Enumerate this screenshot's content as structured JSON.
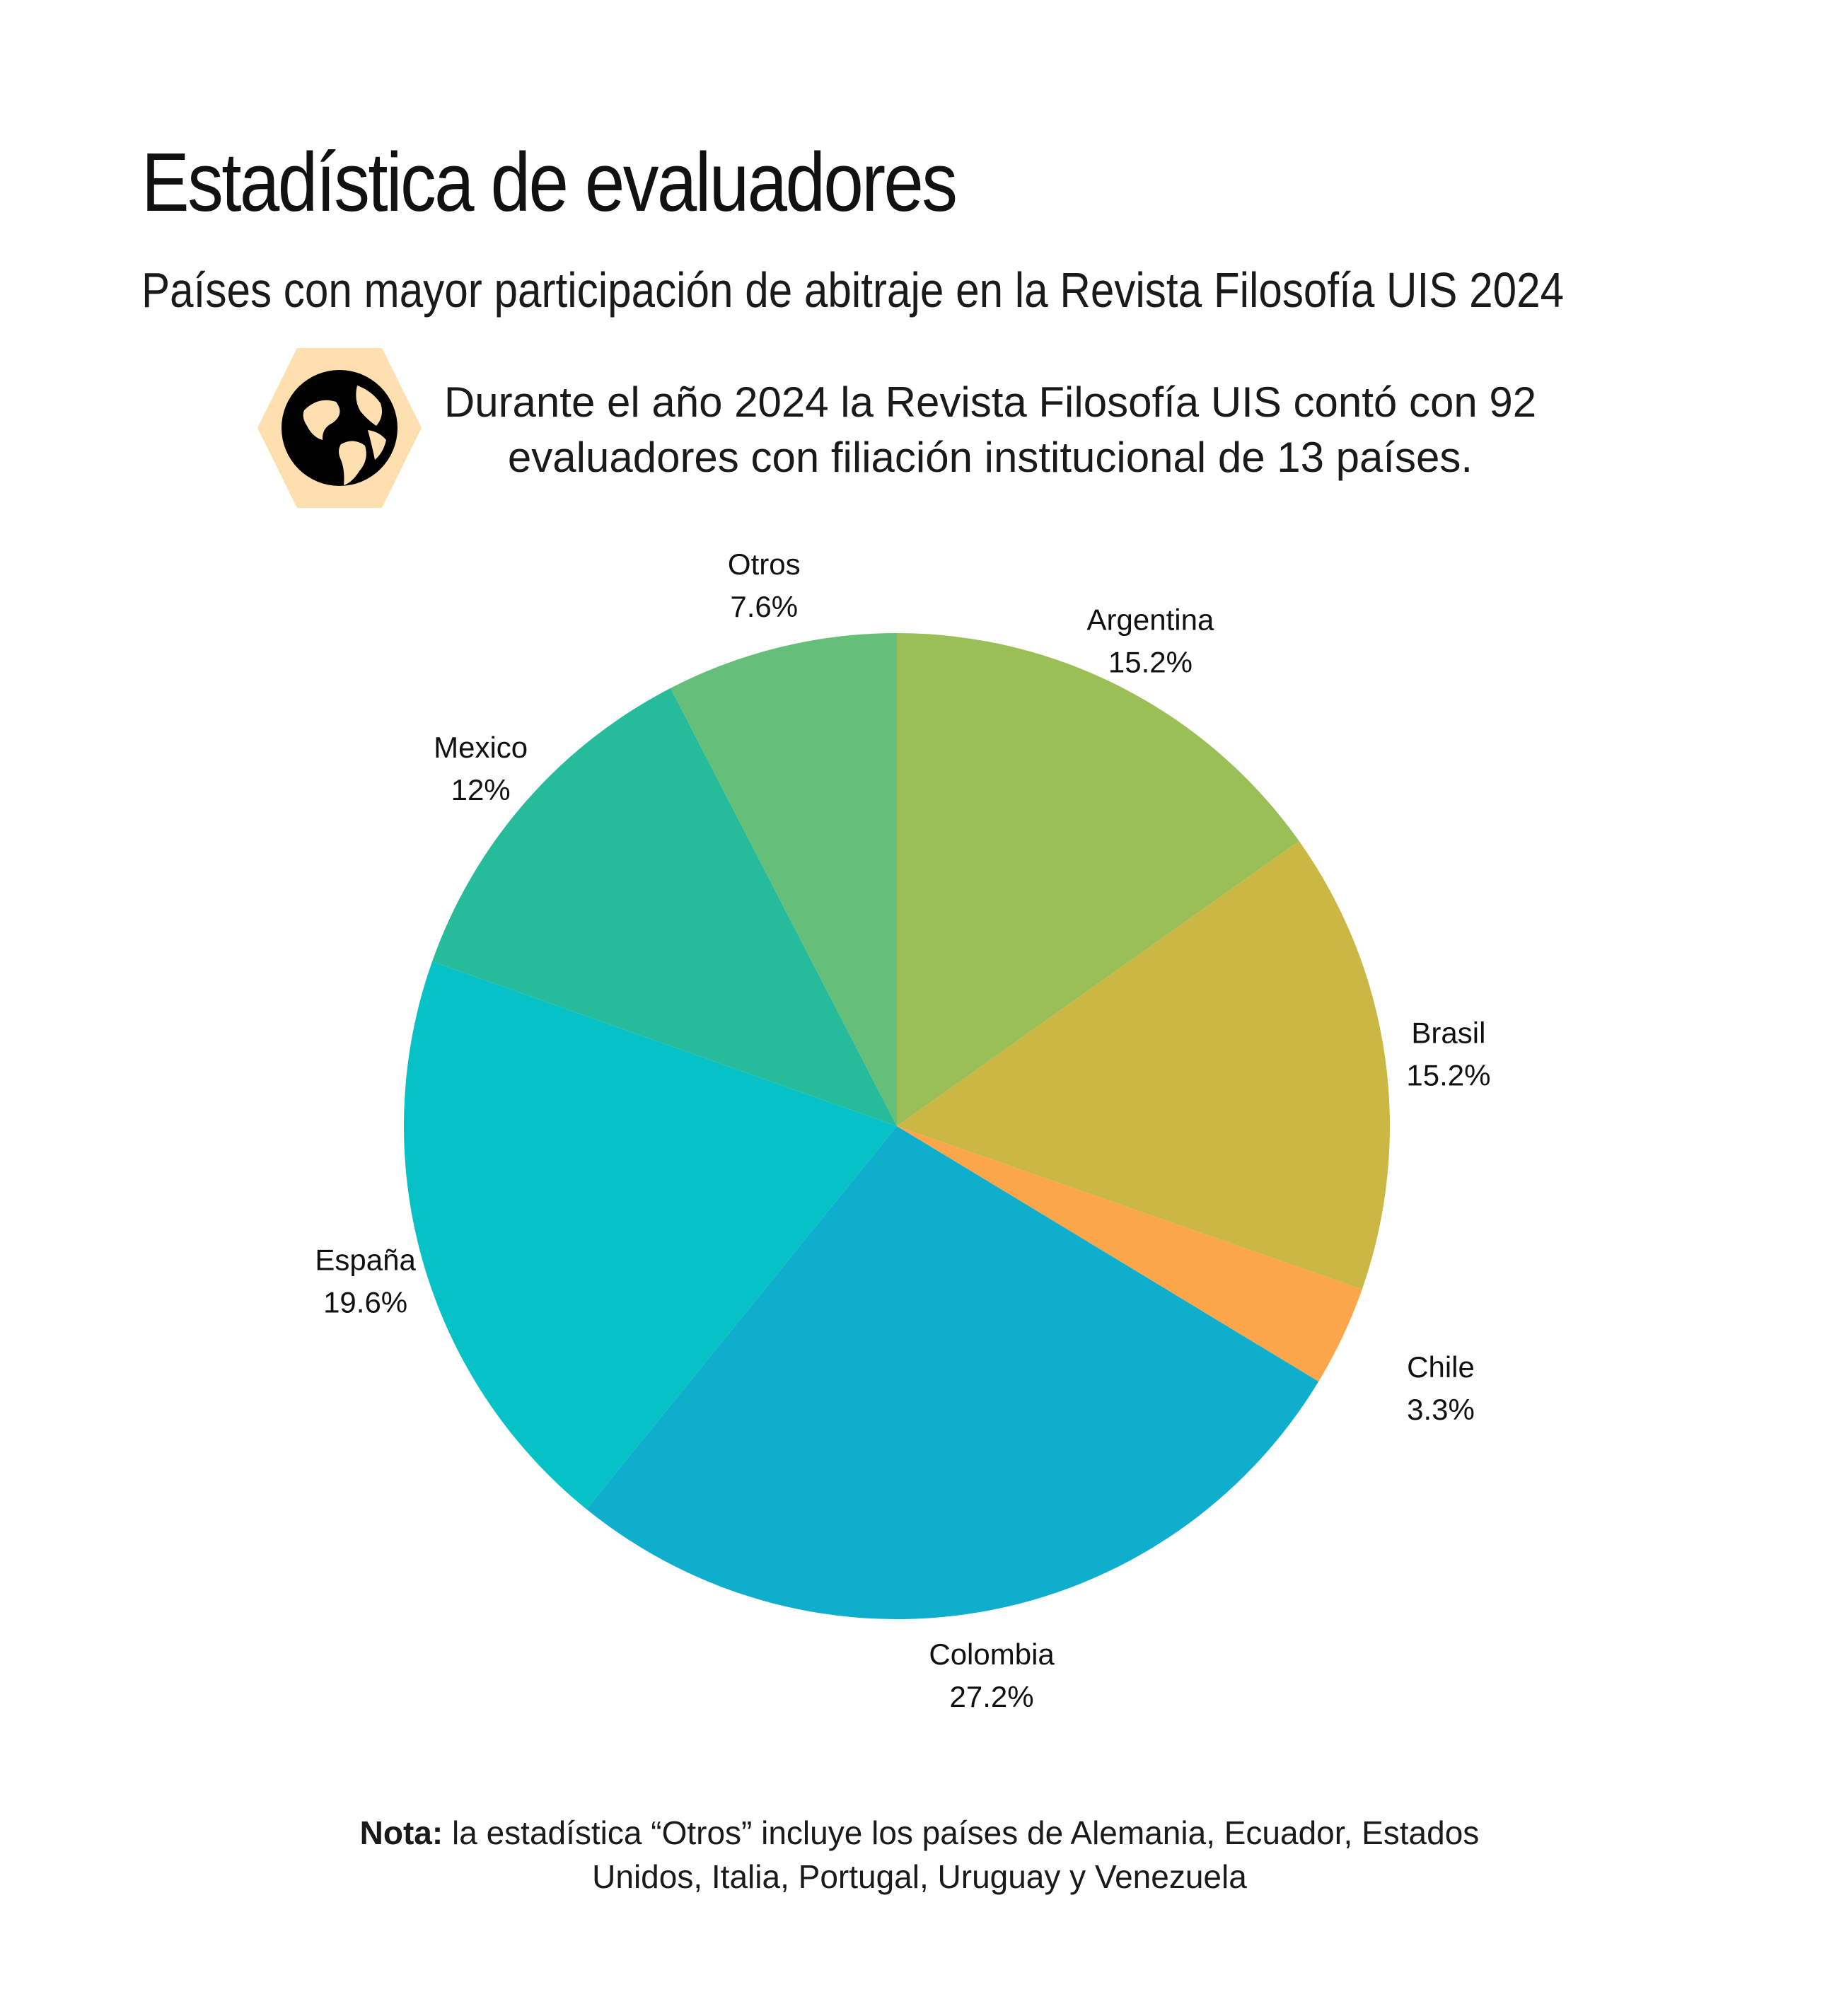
{
  "header": {
    "title": "Estadística de evaluadores",
    "subtitle": "Países con mayor participación de abitraje en la Revista Filosofía UIS 2024"
  },
  "intro": {
    "icon": "globe-icon",
    "line1": "Durante el año 2024 la Revista Filosofía UIS contó con 92",
    "line2": "evaluadores con filiación institucional de 13 países."
  },
  "colors": {
    "badge": "#FDDFB0",
    "icon": "#000000"
  },
  "chart_data": {
    "type": "pie",
    "title": "",
    "slices": [
      {
        "label": "Argentina",
        "value": 15.2,
        "display": "15.2%",
        "color": "#9ABF57"
      },
      {
        "label": "Brasil",
        "value": 15.2,
        "display": "15.2%",
        "color": "#CBB743"
      },
      {
        "label": "Chile",
        "value": 3.3,
        "display": "3.3%",
        "color": "#FBA64B"
      },
      {
        "label": "Colombia",
        "value": 27.2,
        "display": "27.2%",
        "color": "#10AECD"
      },
      {
        "label": "España",
        "value": 19.6,
        "display": "19.6%",
        "color": "#06C2C6"
      },
      {
        "label": "Mexico",
        "value": 12,
        "display": "12%",
        "color": "#26BB9B"
      },
      {
        "label": "Otros",
        "value": 7.6,
        "display": "7.6%",
        "color": "#66BF78"
      }
    ],
    "start_angle": "top",
    "direction": "clockwise",
    "legend": "none"
  },
  "note": {
    "label": "Nota:",
    "text_line1": " la estadística “Otros” incluye los países de Alemania, Ecuador, Estados",
    "text_line2": "Unidos, Italia, Portugal, Uruguay y Venezuela"
  }
}
